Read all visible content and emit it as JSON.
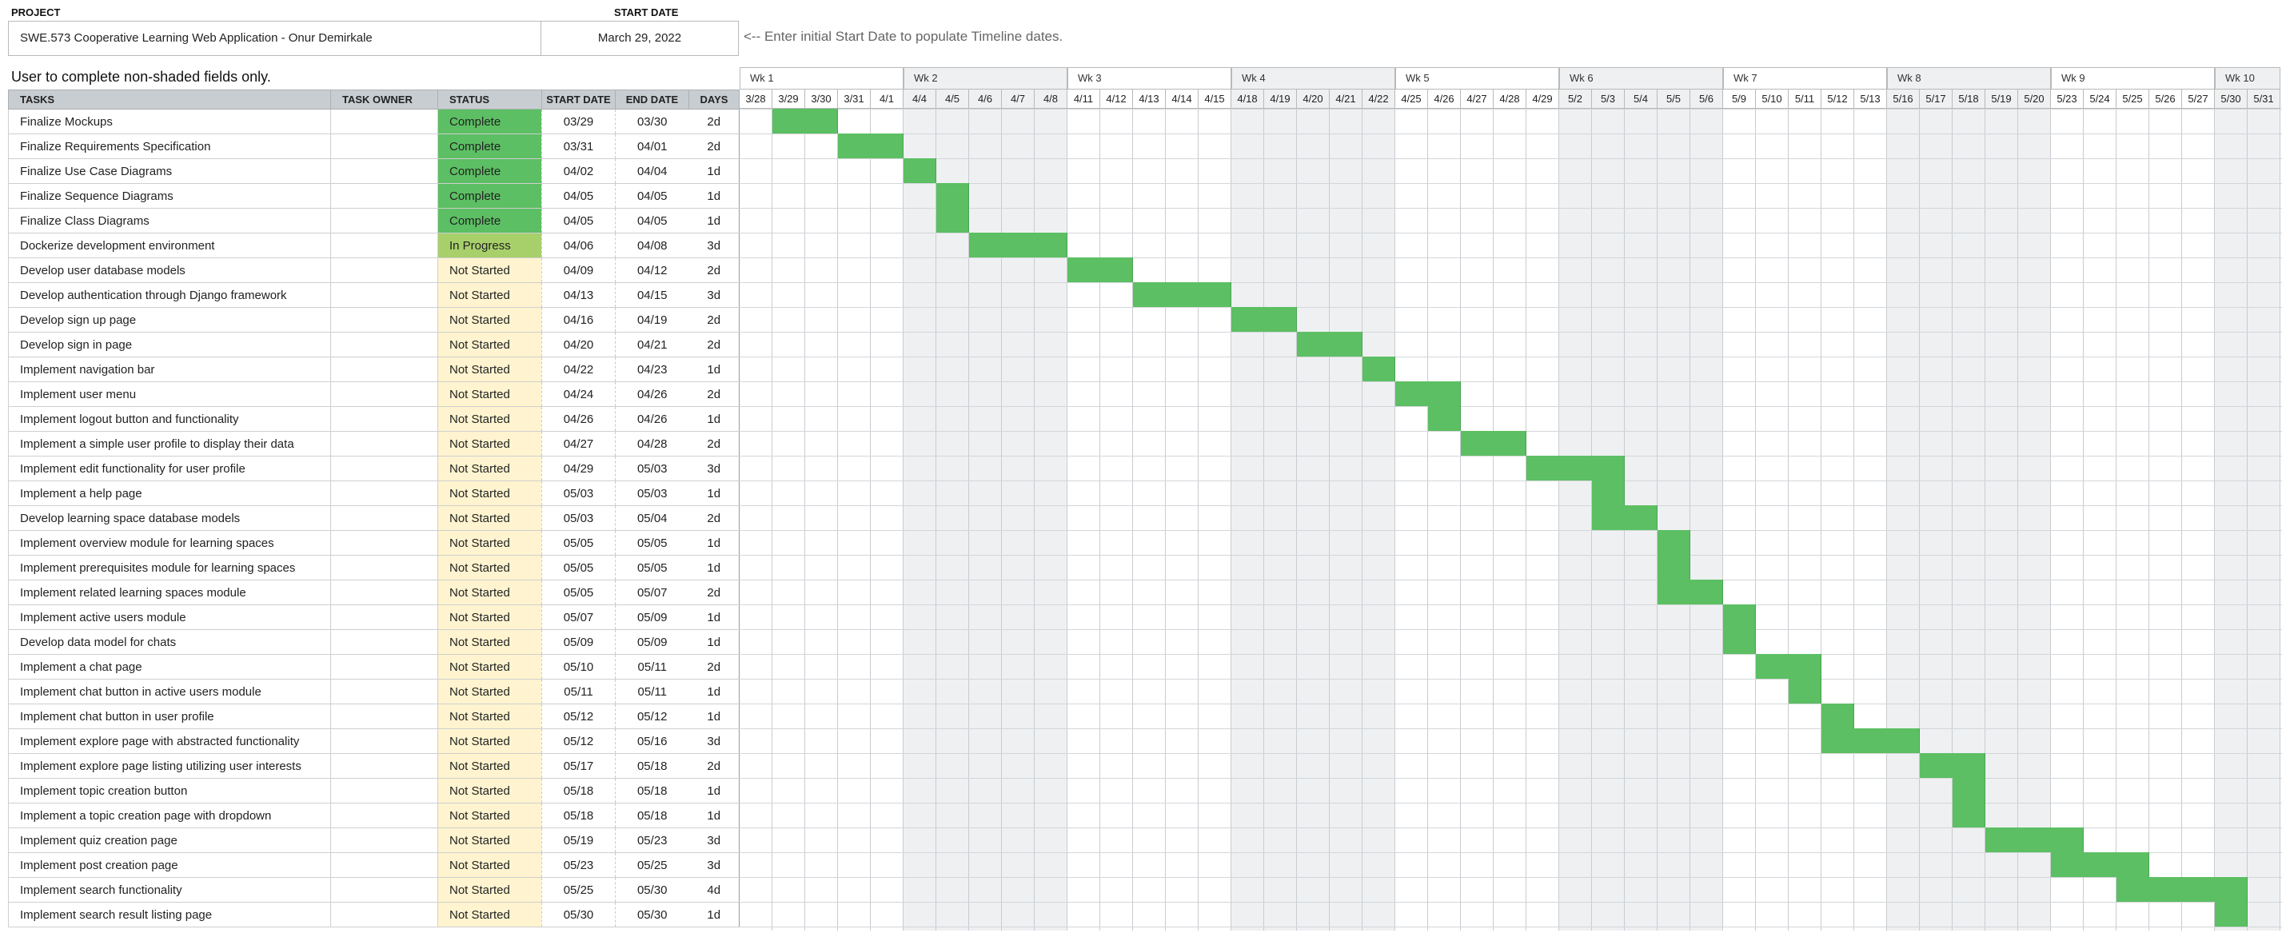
{
  "header": {
    "project_label": "PROJECT",
    "start_label": "START DATE",
    "project_name": "SWE.573 Cooperative Learning Web Application - Onur Demirkale",
    "start_date": "March 29, 2022",
    "hint": "<-- Enter initial Start Date to populate Timeline dates.",
    "note": "User to complete non-shaded fields only."
  },
  "columns": {
    "tasks": "TASKS",
    "owner": "TASK OWNER",
    "status": "STATUS",
    "start": "START DATE",
    "end": "END DATE",
    "days": "DAYS"
  },
  "colors": {
    "complete": "#5cbf63",
    "in_progress": "#a7d06b",
    "not_started": "#fff4cf",
    "header_bg": "#c8cdd1",
    "bar": "#5cbf63"
  },
  "weeks": [
    "Wk 1",
    "Wk 2",
    "Wk 3",
    "Wk 4",
    "Wk 5",
    "Wk 6",
    "Wk 7",
    "Wk 8",
    "Wk 9",
    "Wk 10"
  ],
  "days": [
    "3/28",
    "3/29",
    "3/30",
    "3/31",
    "4/1",
    "4/4",
    "4/5",
    "4/6",
    "4/7",
    "4/8",
    "4/11",
    "4/12",
    "4/13",
    "4/14",
    "4/15",
    "4/18",
    "4/19",
    "4/20",
    "4/21",
    "4/22",
    "4/25",
    "4/26",
    "4/27",
    "4/28",
    "4/29",
    "5/2",
    "5/3",
    "5/4",
    "5/5",
    "5/6",
    "5/9",
    "5/10",
    "5/11",
    "5/12",
    "5/13",
    "5/16",
    "5/17",
    "5/18",
    "5/19",
    "5/20",
    "5/23",
    "5/24",
    "5/25",
    "5/26",
    "5/27",
    "5/30",
    "5/31"
  ],
  "tasks": [
    {
      "name": "Finalize Mockups",
      "owner": "",
      "status": "Complete",
      "start": "03/29",
      "end": "03/30",
      "days": "2d"
    },
    {
      "name": "Finalize Requirements Specification",
      "owner": "",
      "status": "Complete",
      "start": "03/31",
      "end": "04/01",
      "days": "2d"
    },
    {
      "name": "Finalize Use Case Diagrams",
      "owner": "",
      "status": "Complete",
      "start": "04/02",
      "end": "04/04",
      "days": "1d"
    },
    {
      "name": "Finalize Sequence Diagrams",
      "owner": "",
      "status": "Complete",
      "start": "04/05",
      "end": "04/05",
      "days": "1d"
    },
    {
      "name": "Finalize Class Diagrams",
      "owner": "",
      "status": "Complete",
      "start": "04/05",
      "end": "04/05",
      "days": "1d"
    },
    {
      "name": "Dockerize development environment",
      "owner": "",
      "status": "In Progress",
      "start": "04/06",
      "end": "04/08",
      "days": "3d"
    },
    {
      "name": "Develop user database models",
      "owner": "",
      "status": "Not Started",
      "start": "04/09",
      "end": "04/12",
      "days": "2d"
    },
    {
      "name": "Develop authentication through Django framework",
      "owner": "",
      "status": "Not Started",
      "start": "04/13",
      "end": "04/15",
      "days": "3d"
    },
    {
      "name": "Develop sign up page",
      "owner": "",
      "status": "Not Started",
      "start": "04/16",
      "end": "04/19",
      "days": "2d"
    },
    {
      "name": "Develop sign in page",
      "owner": "",
      "status": "Not Started",
      "start": "04/20",
      "end": "04/21",
      "days": "2d"
    },
    {
      "name": "Implement navigation bar",
      "owner": "",
      "status": "Not Started",
      "start": "04/22",
      "end": "04/23",
      "days": "1d"
    },
    {
      "name": "Implement user menu",
      "owner": "",
      "status": "Not Started",
      "start": "04/24",
      "end": "04/26",
      "days": "2d"
    },
    {
      "name": "Implement logout button and functionality",
      "owner": "",
      "status": "Not Started",
      "start": "04/26",
      "end": "04/26",
      "days": "1d"
    },
    {
      "name": "Implement a simple user profile to display their data",
      "owner": "",
      "status": "Not Started",
      "start": "04/27",
      "end": "04/28",
      "days": "2d"
    },
    {
      "name": "Implement edit functionality for user profile",
      "owner": "",
      "status": "Not Started",
      "start": "04/29",
      "end": "05/03",
      "days": "3d"
    },
    {
      "name": "Implement a help page",
      "owner": "",
      "status": "Not Started",
      "start": "05/03",
      "end": "05/03",
      "days": "1d"
    },
    {
      "name": "Develop learning space database models",
      "owner": "",
      "status": "Not Started",
      "start": "05/03",
      "end": "05/04",
      "days": "2d"
    },
    {
      "name": "Implement overview module for learning spaces",
      "owner": "",
      "status": "Not Started",
      "start": "05/05",
      "end": "05/05",
      "days": "1d"
    },
    {
      "name": "Implement prerequisites module for learning spaces",
      "owner": "",
      "status": "Not Started",
      "start": "05/05",
      "end": "05/05",
      "days": "1d"
    },
    {
      "name": "Implement related learning spaces module",
      "owner": "",
      "status": "Not Started",
      "start": "05/05",
      "end": "05/07",
      "days": "2d"
    },
    {
      "name": "Implement active users module",
      "owner": "",
      "status": "Not Started",
      "start": "05/07",
      "end": "05/09",
      "days": "1d"
    },
    {
      "name": "Develop data model for chats",
      "owner": "",
      "status": "Not Started",
      "start": "05/09",
      "end": "05/09",
      "days": "1d"
    },
    {
      "name": "Implement a chat page",
      "owner": "",
      "status": "Not Started",
      "start": "05/10",
      "end": "05/11",
      "days": "2d"
    },
    {
      "name": "Implement chat button in active users module",
      "owner": "",
      "status": "Not Started",
      "start": "05/11",
      "end": "05/11",
      "days": "1d"
    },
    {
      "name": "Implement chat button in user profile",
      "owner": "",
      "status": "Not Started",
      "start": "05/12",
      "end": "05/12",
      "days": "1d"
    },
    {
      "name": "Implement explore page with abstracted functionality",
      "owner": "",
      "status": "Not Started",
      "start": "05/12",
      "end": "05/16",
      "days": "3d"
    },
    {
      "name": "Implement explore page listing utilizing user interests",
      "owner": "",
      "status": "Not Started",
      "start": "05/17",
      "end": "05/18",
      "days": "2d"
    },
    {
      "name": "Implement topic creation button",
      "owner": "",
      "status": "Not Started",
      "start": "05/18",
      "end": "05/18",
      "days": "1d"
    },
    {
      "name": "Implement a topic creation page with dropdown",
      "owner": "",
      "status": "Not Started",
      "start": "05/18",
      "end": "05/18",
      "days": "1d"
    },
    {
      "name": "Implement quiz creation page",
      "owner": "",
      "status": "Not Started",
      "start": "05/19",
      "end": "05/23",
      "days": "3d"
    },
    {
      "name": "Implement post creation page",
      "owner": "",
      "status": "Not Started",
      "start": "05/23",
      "end": "05/25",
      "days": "3d"
    },
    {
      "name": "Implement search functionality",
      "owner": "",
      "status": "Not Started",
      "start": "05/25",
      "end": "05/30",
      "days": "4d"
    },
    {
      "name": "Implement search result listing page",
      "owner": "",
      "status": "Not Started",
      "start": "05/30",
      "end": "05/30",
      "days": "1d"
    }
  ]
}
